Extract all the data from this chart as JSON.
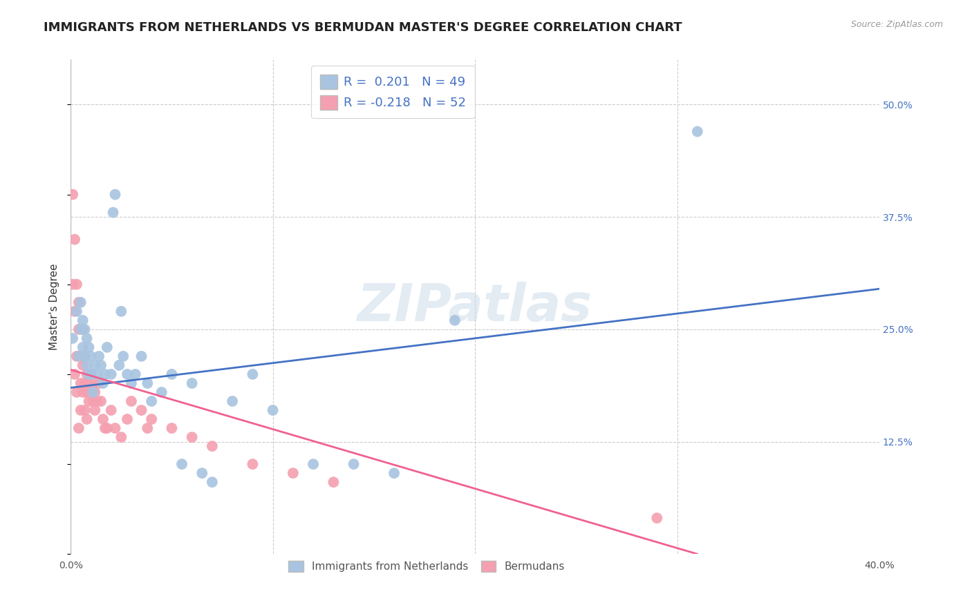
{
  "title": "IMMIGRANTS FROM NETHERLANDS VS BERMUDAN MASTER'S DEGREE CORRELATION CHART",
  "source": "Source: ZipAtlas.com",
  "ylabel": "Master's Degree",
  "ytick_labels": [
    "50.0%",
    "37.5%",
    "25.0%",
    "12.5%"
  ],
  "ytick_values": [
    0.5,
    0.375,
    0.25,
    0.125
  ],
  "xlim": [
    0.0,
    0.4
  ],
  "ylim": [
    0.0,
    0.55
  ],
  "blue_R": 0.201,
  "blue_N": 49,
  "pink_R": -0.218,
  "pink_N": 52,
  "blue_color": "#a8c4e0",
  "pink_color": "#f4a0b0",
  "blue_line_color": "#4472c4",
  "pink_line_color": "#f06090",
  "watermark": "ZIPatlas",
  "legend_label_blue": "Immigrants from Netherlands",
  "legend_label_pink": "Bermudans",
  "blue_scatter_x": [
    0.001,
    0.003,
    0.004,
    0.005,
    0.005,
    0.006,
    0.006,
    0.007,
    0.007,
    0.008,
    0.008,
    0.009,
    0.009,
    0.01,
    0.01,
    0.011,
    0.012,
    0.013,
    0.014,
    0.015,
    0.016,
    0.017,
    0.018,
    0.02,
    0.021,
    0.022,
    0.024,
    0.025,
    0.026,
    0.028,
    0.03,
    0.032,
    0.035,
    0.038,
    0.04,
    0.045,
    0.05,
    0.055,
    0.06,
    0.065,
    0.07,
    0.08,
    0.09,
    0.1,
    0.12,
    0.14,
    0.16,
    0.19,
    0.31
  ],
  "blue_scatter_y": [
    0.24,
    0.27,
    0.22,
    0.25,
    0.28,
    0.23,
    0.26,
    0.22,
    0.25,
    0.21,
    0.24,
    0.2,
    0.23,
    0.2,
    0.22,
    0.18,
    0.21,
    0.2,
    0.22,
    0.21,
    0.19,
    0.2,
    0.23,
    0.2,
    0.38,
    0.4,
    0.21,
    0.27,
    0.22,
    0.2,
    0.19,
    0.2,
    0.22,
    0.19,
    0.17,
    0.18,
    0.2,
    0.1,
    0.19,
    0.09,
    0.08,
    0.17,
    0.2,
    0.16,
    0.1,
    0.1,
    0.09,
    0.26,
    0.47
  ],
  "pink_scatter_x": [
    0.001,
    0.001,
    0.002,
    0.002,
    0.002,
    0.003,
    0.003,
    0.003,
    0.004,
    0.004,
    0.004,
    0.005,
    0.005,
    0.005,
    0.006,
    0.006,
    0.006,
    0.007,
    0.007,
    0.007,
    0.008,
    0.008,
    0.008,
    0.009,
    0.009,
    0.01,
    0.01,
    0.011,
    0.011,
    0.012,
    0.012,
    0.013,
    0.014,
    0.015,
    0.016,
    0.017,
    0.018,
    0.02,
    0.022,
    0.025,
    0.028,
    0.03,
    0.035,
    0.038,
    0.04,
    0.05,
    0.06,
    0.07,
    0.09,
    0.11,
    0.13,
    0.29
  ],
  "pink_scatter_y": [
    0.4,
    0.3,
    0.35,
    0.27,
    0.2,
    0.3,
    0.22,
    0.18,
    0.28,
    0.25,
    0.14,
    0.22,
    0.19,
    0.16,
    0.25,
    0.21,
    0.18,
    0.22,
    0.19,
    0.16,
    0.2,
    0.18,
    0.15,
    0.19,
    0.17,
    0.2,
    0.18,
    0.19,
    0.17,
    0.18,
    0.16,
    0.17,
    0.19,
    0.17,
    0.15,
    0.14,
    0.14,
    0.16,
    0.14,
    0.13,
    0.15,
    0.17,
    0.16,
    0.14,
    0.15,
    0.14,
    0.13,
    0.12,
    0.1,
    0.09,
    0.08,
    0.04
  ],
  "blue_line_x": [
    0.0,
    0.4
  ],
  "blue_line_y_start": 0.185,
  "blue_line_y_end": 0.295,
  "pink_line_x": [
    0.0,
    0.31
  ],
  "pink_line_y_start": 0.205,
  "pink_line_y_end": 0.0,
  "grid_color": "#cccccc",
  "background_color": "#ffffff",
  "title_fontsize": 13,
  "axis_label_fontsize": 11,
  "tick_fontsize": 10,
  "xtick_positions": [
    0.0,
    0.1,
    0.2,
    0.3,
    0.4
  ],
  "xtick_labels_show": [
    "0.0%",
    "",
    "",
    "",
    "40.0%"
  ]
}
